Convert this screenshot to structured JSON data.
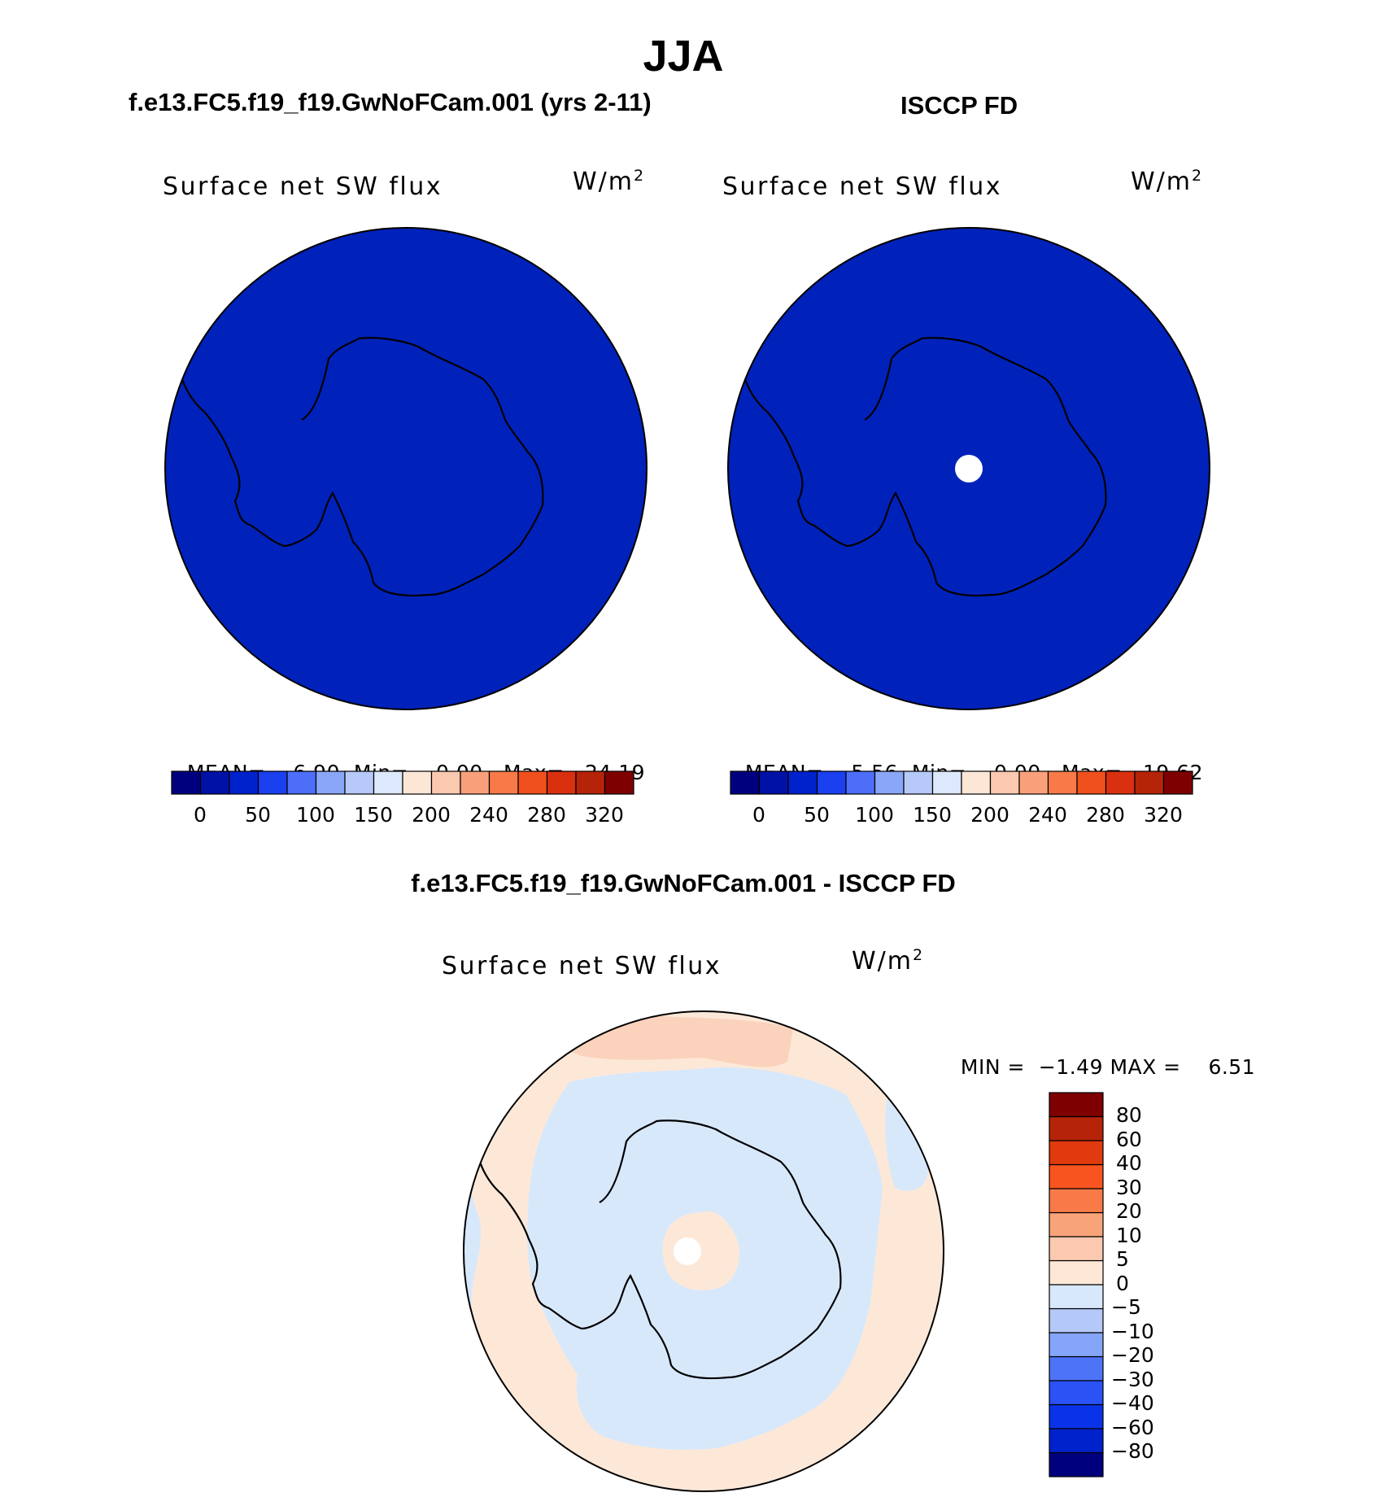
{
  "title": "JJA",
  "panels": [
    {
      "header": "f.e13.FC5.f19_f19.GwNoFCam.001 (yrs 2-11)",
      "variable": "Surface net SW flux",
      "units_base": "W/m",
      "units_sup": "2",
      "stats": {
        "mean_label": "MEAN=",
        "mean": "6.90",
        "min_label": "Min=",
        "min": "0.00",
        "max_label": "Max=",
        "max": "24.19"
      }
    },
    {
      "header": "ISCCP FD",
      "variable": "Surface net SW flux",
      "units_base": "W/m",
      "units_sup": "2",
      "stats": {
        "mean_label": "MEAN=",
        "mean": "5.56",
        "min_label": "Min=",
        "min": "0.00",
        "max_label": "Max=",
        "max": "19.62"
      }
    }
  ],
  "abs_colorbar": {
    "colors": [
      "#00007f",
      "#0011a6",
      "#0022cc",
      "#1a40f0",
      "#4d6ef8",
      "#8aa6f8",
      "#b6c9f8",
      "#dce8fb",
      "#fce6d6",
      "#fbc8b0",
      "#f9a07a",
      "#f77a48",
      "#f0501e",
      "#d93010",
      "#b52408",
      "#7f0000"
    ],
    "labels": [
      "0",
      "50",
      "100",
      "150",
      "200",
      "240",
      "280",
      "320"
    ]
  },
  "diff": {
    "header": "f.e13.FC5.f19_f19.GwNoFCam.001 - ISCCP FD",
    "variable": "Surface net SW flux",
    "units_base": "W/m",
    "units_sup": "2",
    "stats": {
      "min_label": "MIN =",
      "min": "−1.49",
      "max_label": "MAX =",
      "max": "6.51"
    },
    "colorbar": {
      "colors": [
        "#00007f",
        "#0022cc",
        "#0a33e8",
        "#2a52f4",
        "#4d74f6",
        "#85a5f8",
        "#b5c9f8",
        "#d8e8fb",
        "#fde8d8",
        "#fbc8b0",
        "#f9a37a",
        "#f77a48",
        "#f85420",
        "#e03a0e",
        "#b52408",
        "#7f0000"
      ],
      "labels": [
        "80",
        "60",
        "40",
        "30",
        "20",
        "10",
        "5",
        "0",
        "−5",
        "−10",
        "−20",
        "−30",
        "−40",
        "−60",
        "−80"
      ]
    }
  },
  "map_colors": {
    "ocean_fill": "#0022bb",
    "neg_small": "#d8e8fb",
    "pos_small": "#fde8d8",
    "pos_medium": "#fbd2bc",
    "missing": "#ffffff",
    "coastline": "#000000"
  }
}
